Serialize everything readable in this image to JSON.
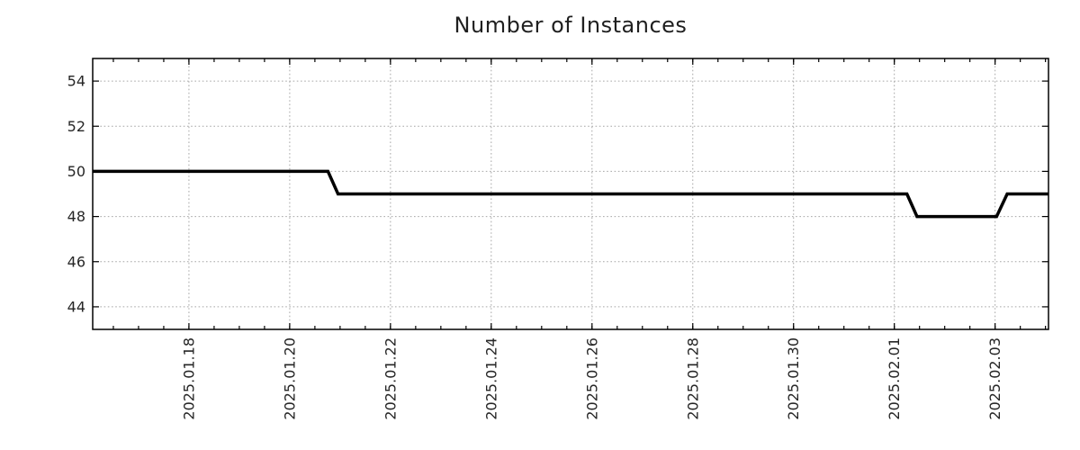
{
  "chart_data": {
    "type": "line",
    "title": "Number of Instances",
    "xlabel": "",
    "ylabel": "",
    "legend": "none",
    "grid": true,
    "background": "#ffffff",
    "axis_color": "#000000",
    "grid_color": "#a6a6a6",
    "tick_label_color": "#262626",
    "x_axis": {
      "unit": "days since 2025-01-16 00:00",
      "lim": [
        0.09,
        19.06
      ],
      "major_ticks": [
        {
          "day": 2,
          "label": "2025.01.18"
        },
        {
          "day": 4,
          "label": "2025.01.20"
        },
        {
          "day": 6,
          "label": "2025.01.22"
        },
        {
          "day": 8,
          "label": "2025.01.24"
        },
        {
          "day": 10,
          "label": "2025.01.26"
        },
        {
          "day": 12,
          "label": "2025.01.28"
        },
        {
          "day": 14,
          "label": "2025.01.30"
        },
        {
          "day": 16,
          "label": "2025.02.01"
        },
        {
          "day": 18,
          "label": "2025.02.03"
        }
      ],
      "minor_tick_step_days": 0.5
    },
    "y_axis": {
      "lim": [
        43,
        55
      ],
      "ticks": [
        44,
        46,
        48,
        50,
        52,
        54
      ]
    },
    "series": [
      {
        "name": "instances",
        "color": "#000000",
        "stroke_width": 3.5,
        "points_day_value": [
          [
            0.09,
            50
          ],
          [
            4.76,
            50
          ],
          [
            4.96,
            49
          ],
          [
            16.25,
            49
          ],
          [
            16.45,
            48
          ],
          [
            18.03,
            48
          ],
          [
            18.24,
            49
          ],
          [
            19.06,
            49
          ]
        ]
      }
    ]
  }
}
